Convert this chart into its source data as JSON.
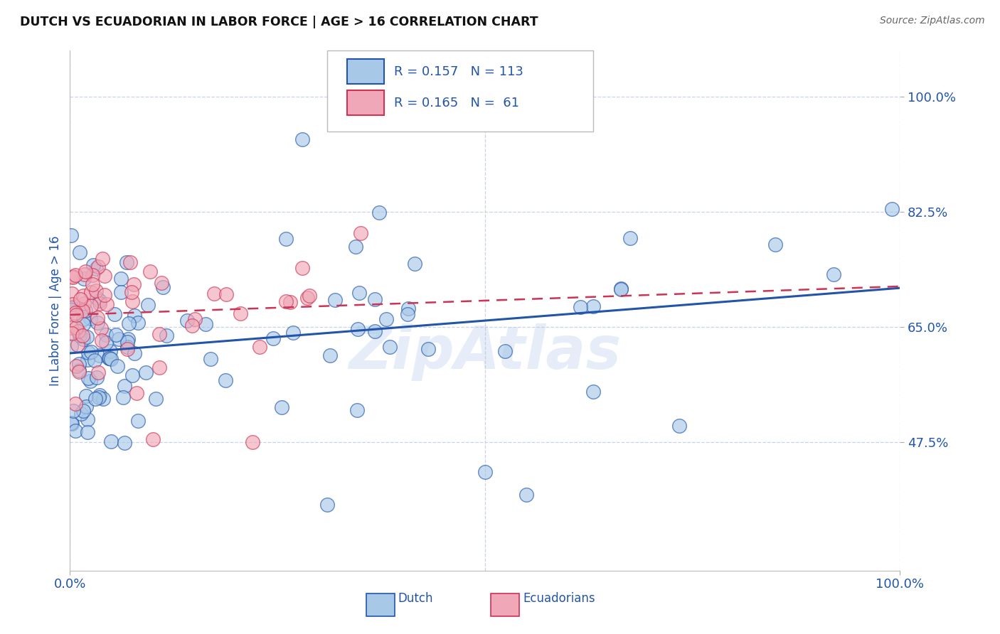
{
  "title": "DUTCH VS ECUADORIAN IN LABOR FORCE | AGE > 16 CORRELATION CHART",
  "source": "Source: ZipAtlas.com",
  "ylabel": "In Labor Force | Age > 16",
  "dutch_color": "#a8c8e8",
  "dutch_color_line": "#2255aa",
  "ecu_color": "#f0a8b8",
  "ecu_color_line": "#cc3355",
  "watermark": "ZipAtlas",
  "background_color": "#ffffff",
  "grid_color": "#c8d4e8",
  "ytick_vals": [
    1.0,
    0.825,
    0.65,
    0.475
  ],
  "ytick_labels": [
    "100.0%",
    "82.5%",
    "65.0%",
    "47.5%"
  ],
  "ylim": [
    0.28,
    1.07
  ],
  "xlim": [
    0.0,
    1.0
  ],
  "legend_text_dutch": "R = 0.157   N = 113",
  "legend_text_ecu": "R = 0.165   N =  61",
  "tick_color": "#2255aa",
  "title_color": "#111111",
  "source_color": "#666666"
}
